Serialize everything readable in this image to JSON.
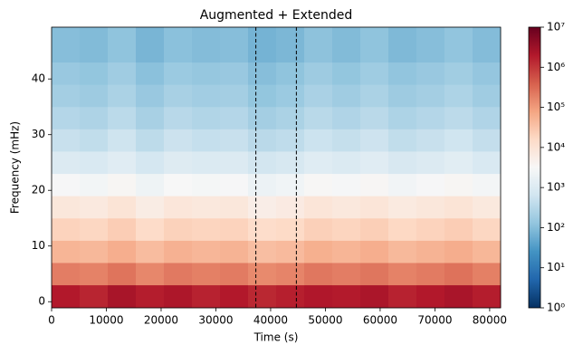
{
  "chart_data": {
    "type": "heatmap",
    "title": "Augmented + Extended",
    "xlabel": "Time (s)",
    "ylabel": "Frequency (mHz)",
    "colormap": "RdBu_r",
    "color_scale": "log",
    "xlim": [
      0,
      82000
    ],
    "ylim": [
      -1.1,
      49.3
    ],
    "xticks": [
      0,
      10000,
      20000,
      30000,
      40000,
      50000,
      60000,
      70000,
      80000
    ],
    "yticks": [
      0,
      10,
      20,
      30,
      40
    ],
    "xbins": [
      0,
      5125,
      10250,
      15375,
      20500,
      25625,
      30750,
      35875,
      41000,
      46125,
      51250,
      56375,
      61500,
      66625,
      71750,
      76875,
      82000
    ],
    "ybins": [
      -1.1,
      3,
      7,
      11,
      15,
      19,
      23,
      27,
      31,
      35,
      39,
      43,
      49.3
    ],
    "z": [
      [
        2000000,
        1500000,
        2500000,
        1800000,
        2200000,
        1600000,
        2000000,
        1400000,
        1700000,
        2100000,
        1900000,
        2300000,
        1600000,
        2000000,
        2400000,
        1800000
      ],
      [
        200000,
        180000,
        250000,
        160000,
        220000,
        190000,
        210000,
        150000,
        170000,
        230000,
        200000,
        240000,
        180000,
        210000,
        260000,
        190000
      ],
      [
        50000,
        45000,
        60000,
        40000,
        55000,
        48000,
        52000,
        38000,
        42000,
        58000,
        50000,
        60000,
        44000,
        52000,
        62000,
        47000
      ],
      [
        20000,
        18000,
        24000,
        15000,
        21000,
        19000,
        20000,
        14000,
        16000,
        22000,
        19000,
        23000,
        17000,
        20000,
        24000,
        18000
      ],
      [
        8000,
        7000,
        9500,
        6000,
        8500,
        7500,
        8000,
        5500,
        6500,
        9000,
        7500,
        9000,
        6800,
        8000,
        9500,
        7200
      ],
      [
        3000,
        2600,
        3600,
        2200,
        3200,
        2800,
        3000,
        2000,
        2400,
        3400,
        2900,
        3500,
        2500,
        3000,
        3600,
        2700
      ],
      [
        1000,
        900,
        1200,
        750,
        1100,
        950,
        1000,
        700,
        800,
        1150,
        950,
        1200,
        850,
        1000,
        1250,
        900
      ],
      [
        500,
        420,
        600,
        380,
        550,
        470,
        500,
        350,
        400,
        560,
        460,
        580,
        420,
        500,
        620,
        450
      ],
      [
        300,
        260,
        360,
        220,
        330,
        280,
        300,
        200,
        240,
        340,
        270,
        350,
        250,
        300,
        370,
        270
      ],
      [
        200,
        170,
        240,
        150,
        220,
        190,
        200,
        130,
        160,
        230,
        180,
        240,
        170,
        200,
        250,
        180
      ],
      [
        150,
        130,
        180,
        110,
        160,
        140,
        150,
        100,
        120,
        170,
        130,
        175,
        125,
        150,
        185,
        135
      ],
      [
        100,
        90,
        120,
        75,
        110,
        95,
        100,
        70,
        80,
        115,
        90,
        120,
        85,
        100,
        125,
        95
      ]
    ],
    "vlines": [
      37300,
      44700
    ],
    "clim": [
      1,
      10000000
    ],
    "cticks": [
      {
        "value": 1,
        "label": "10⁰"
      },
      {
        "value": 10,
        "label": "10¹"
      },
      {
        "value": 100,
        "label": "10²"
      },
      {
        "value": 1000,
        "label": "10³"
      },
      {
        "value": 10000,
        "label": "10⁴"
      },
      {
        "value": 100000,
        "label": "10⁵"
      },
      {
        "value": 1000000,
        "label": "10⁶"
      },
      {
        "value": 10000000,
        "label": "10⁷"
      }
    ]
  }
}
